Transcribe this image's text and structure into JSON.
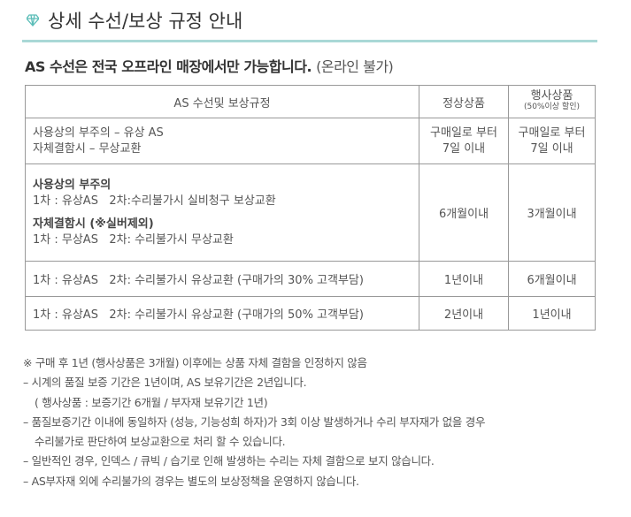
{
  "title": "상세 수선/보상 규정 안내",
  "icon": "diamond-icon",
  "accent": "#5bbdb8",
  "subtitle": {
    "bold": "AS 수선은 전국 오프라인 매장에서만 가능합니다.",
    "normal": "(온라인 불가)"
  },
  "table": {
    "headers": [
      "AS 수선및 보상규정",
      "정상상품",
      "행사상품",
      "(50%이상 할인)"
    ],
    "rows": [
      {
        "lines": [
          "사용상의 부주의 – 유상 AS",
          "자체결함시 – 무상교환"
        ],
        "normal": [
          "구매일로 부터",
          "7일 이내"
        ],
        "event": [
          "구매일로 부터",
          "7일 이내"
        ]
      },
      {
        "h1": "사용상의 부주의",
        "l1": "1차 : 유상AS   2차:수리불가시 실비청구 보상교환",
        "h2": "자체결함시 (※실버제외)",
        "l2": "1차 : 무상AS   2차: 수리불가시 무상교환",
        "normal": "6개월이내",
        "event": "3개월이내"
      },
      {
        "text": "1차 : 유상AS   2차: 수리불가시 유상교환 (구매가의 30% 고객부담)",
        "normal": "1년이내",
        "event": "6개월이내"
      },
      {
        "text": "1차 : 유상AS   2차: 수리불가시 유상교환 (구매가의 50% 고객부담)",
        "normal": "2년이내",
        "event": "1년이내"
      }
    ]
  },
  "notes": [
    "※ 구매 후 1년 (행사상품은 3개월) 이후에는 상품 자체 결함을 인정하지 않음",
    "– 시계의 품질 보증 기간은 1년이며, AS 보유기간은 2년입니다.",
    "( 행사상품 : 보증기간 6개월 / 부자재 보유기간 1년)",
    "– 품질보증기간 이내에 동일하자 (성능, 기능성희 하자)가 3회 이상 발생하거나 수리 부자재가 없을 경우",
    "수리불가로 판단하여 보상교환으로 처리 할 수 있습니다.",
    "– 일반적인 경우, 인덱스 / 큐빅 / 습기로 인해 발생하는 수리는 자체 결함으로 보지 않습니다.",
    "– AS부자재 외에 수리불가의 경우는 별도의 보상정책을 운영하지 않습니다."
  ]
}
